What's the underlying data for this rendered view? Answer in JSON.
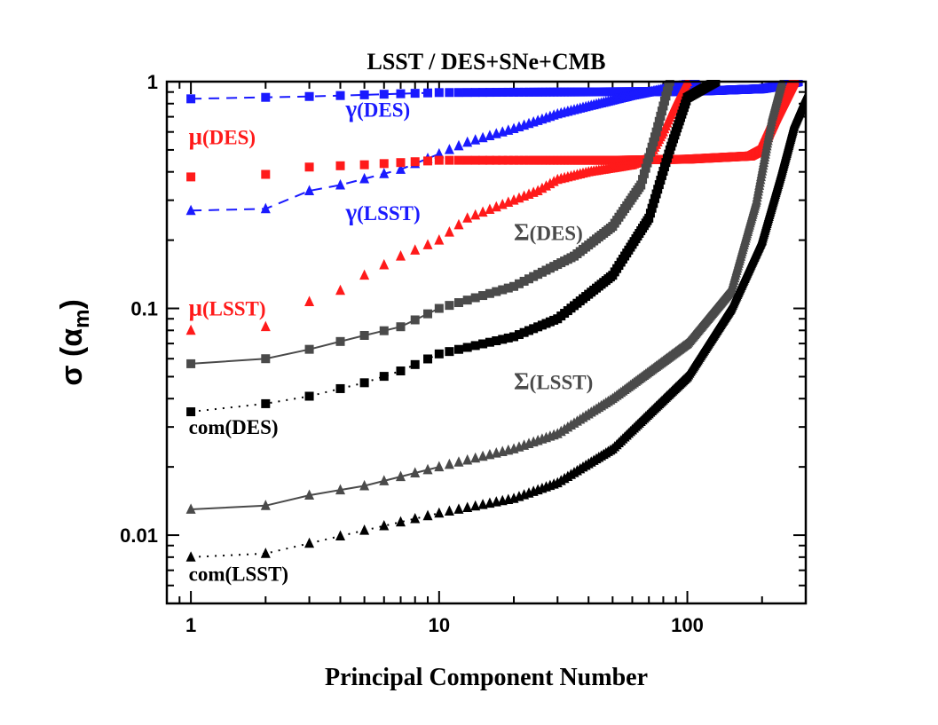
{
  "chart_data": {
    "type": "scatter",
    "title": "LSST / DES+SNe+CMB",
    "xlabel": "Principal Component Number",
    "ylabel": "σ (α",
    "ylabel_sub": "m",
    "ylabel_close": ")",
    "xscale": "log",
    "yscale": "log",
    "xlim": [
      0.8,
      300
    ],
    "ylim": [
      0.005,
      1
    ],
    "xticks": [
      {
        "v": 1,
        "label": "1"
      },
      {
        "v": 10,
        "label": "10"
      },
      {
        "v": 100,
        "label": "100"
      }
    ],
    "yticks": [
      {
        "v": 0.01,
        "label": "0.01"
      },
      {
        "v": 0.1,
        "label": "0.1"
      },
      {
        "v": 1,
        "label": "1"
      }
    ],
    "series": [
      {
        "name": "γ(DES)",
        "color": "#1a1aff",
        "marker": "square",
        "line": "dashed",
        "fill": "full",
        "nodes": [
          [
            1,
            0.84
          ],
          [
            3,
            0.86
          ],
          [
            10,
            0.895
          ],
          [
            30,
            0.9
          ],
          [
            100,
            0.905
          ],
          [
            200,
            0.93
          ],
          [
            240,
            0.96
          ],
          [
            280,
            1.0
          ]
        ]
      },
      {
        "name": "γ(LSST)",
        "color": "#1a1aff",
        "marker": "triangle",
        "line": "dashed",
        "fill": "full",
        "nodes": [
          [
            1,
            0.27
          ],
          [
            2,
            0.275
          ],
          [
            3,
            0.33
          ],
          [
            4,
            0.35
          ],
          [
            7,
            0.41
          ],
          [
            10,
            0.48
          ],
          [
            13,
            0.54
          ],
          [
            20,
            0.62
          ],
          [
            30,
            0.72
          ],
          [
            40,
            0.78
          ],
          [
            60,
            0.87
          ],
          [
            90,
            0.95
          ],
          [
            110,
            1.0
          ]
        ]
      },
      {
        "name": "μ(DES)",
        "color": "#ff1a1a",
        "marker": "square",
        "line": "none",
        "fill": "full",
        "nodes": [
          [
            1,
            0.38
          ],
          [
            2,
            0.39
          ],
          [
            3,
            0.42
          ],
          [
            5,
            0.43
          ],
          [
            10,
            0.45
          ],
          [
            50,
            0.45
          ],
          [
            100,
            0.455
          ],
          [
            180,
            0.47
          ],
          [
            200,
            0.5
          ],
          [
            230,
            0.7
          ],
          [
            270,
            1.0
          ]
        ]
      },
      {
        "name": "μ(LSST)",
        "color": "#ff1a1a",
        "marker": "triangle",
        "line": "none",
        "fill": "full",
        "nodes": [
          [
            1,
            0.08
          ],
          [
            2,
            0.083
          ],
          [
            3,
            0.107
          ],
          [
            4,
            0.12
          ],
          [
            5,
            0.14
          ],
          [
            7,
            0.17
          ],
          [
            10,
            0.2
          ],
          [
            13,
            0.25
          ],
          [
            20,
            0.3
          ],
          [
            25,
            0.33
          ],
          [
            30,
            0.37
          ],
          [
            40,
            0.4
          ],
          [
            60,
            0.43
          ],
          [
            70,
            0.46
          ],
          [
            80,
            0.6
          ],
          [
            90,
            0.8
          ],
          [
            100,
            1.0
          ]
        ]
      },
      {
        "name": "Σ(DES)",
        "color": "#4a4a4a",
        "marker": "square",
        "line": "solid",
        "fill": "full",
        "nodes": [
          [
            1,
            0.057
          ],
          [
            2,
            0.06
          ],
          [
            3,
            0.066
          ],
          [
            5,
            0.076
          ],
          [
            7,
            0.083
          ],
          [
            10,
            0.1
          ],
          [
            20,
            0.125
          ],
          [
            35,
            0.17
          ],
          [
            50,
            0.23
          ],
          [
            65,
            0.35
          ],
          [
            75,
            0.6
          ],
          [
            85,
            1.0
          ]
        ]
      },
      {
        "name": "com(DES)",
        "color": "#000000",
        "marker": "square",
        "line": "dotted",
        "fill": "full",
        "nodes": [
          [
            1,
            0.035
          ],
          [
            2,
            0.038
          ],
          [
            3,
            0.041
          ],
          [
            5,
            0.047
          ],
          [
            7,
            0.053
          ],
          [
            10,
            0.063
          ],
          [
            20,
            0.075
          ],
          [
            30,
            0.09
          ],
          [
            50,
            0.14
          ],
          [
            70,
            0.25
          ],
          [
            85,
            0.5
          ],
          [
            100,
            0.85
          ],
          [
            130,
            1.0
          ]
        ]
      },
      {
        "name": "Σ(LSST)",
        "color": "#4a4a4a",
        "marker": "triangle",
        "line": "solid",
        "fill": "full",
        "nodes": [
          [
            1,
            0.013
          ],
          [
            2,
            0.0135
          ],
          [
            3,
            0.015
          ],
          [
            5,
            0.0165
          ],
          [
            10,
            0.02
          ],
          [
            20,
            0.024
          ],
          [
            30,
            0.028
          ],
          [
            50,
            0.04
          ],
          [
            100,
            0.07
          ],
          [
            150,
            0.12
          ],
          [
            190,
            0.3
          ],
          [
            220,
            0.7
          ],
          [
            240,
            1.0
          ]
        ]
      },
      {
        "name": "com(LSST)",
        "color": "#000000",
        "marker": "triangle",
        "line": "dotted",
        "fill": "full",
        "nodes": [
          [
            1,
            0.008
          ],
          [
            2,
            0.0083
          ],
          [
            3,
            0.0092
          ],
          [
            5,
            0.0105
          ],
          [
            10,
            0.0125
          ],
          [
            20,
            0.0145
          ],
          [
            30,
            0.017
          ],
          [
            50,
            0.024
          ],
          [
            100,
            0.05
          ],
          [
            150,
            0.1
          ],
          [
            200,
            0.2
          ],
          [
            240,
            0.4
          ],
          [
            270,
            0.65
          ],
          [
            300,
            0.85
          ]
        ]
      }
    ],
    "annotations": [
      {
        "text": "γ(DES)",
        "color": "#1a1aff",
        "x": 4.2,
        "y": 0.7
      },
      {
        "text": "γ(LSST)",
        "color": "#1a1aff",
        "x": 4.2,
        "y": 0.245
      },
      {
        "text": "μ(DES)",
        "color": "#ff1a1a",
        "x": 0.98,
        "y": 0.53
      },
      {
        "text": "μ(LSST)",
        "color": "#ff1a1a",
        "x": 0.98,
        "y": 0.093
      },
      {
        "text": "Σ(DES)",
        "color": "#4a4a4a",
        "x": 20,
        "y": 0.2
      },
      {
        "text": "Σ(LSST)",
        "color": "#4a4a4a",
        "x": 20,
        "y": 0.044
      },
      {
        "text": "com(DES)",
        "color": "#000000",
        "x": 0.98,
        "y": 0.028
      },
      {
        "text": "com(LSST)",
        "color": "#000000",
        "x": 0.98,
        "y": 0.0063
      }
    ]
  }
}
